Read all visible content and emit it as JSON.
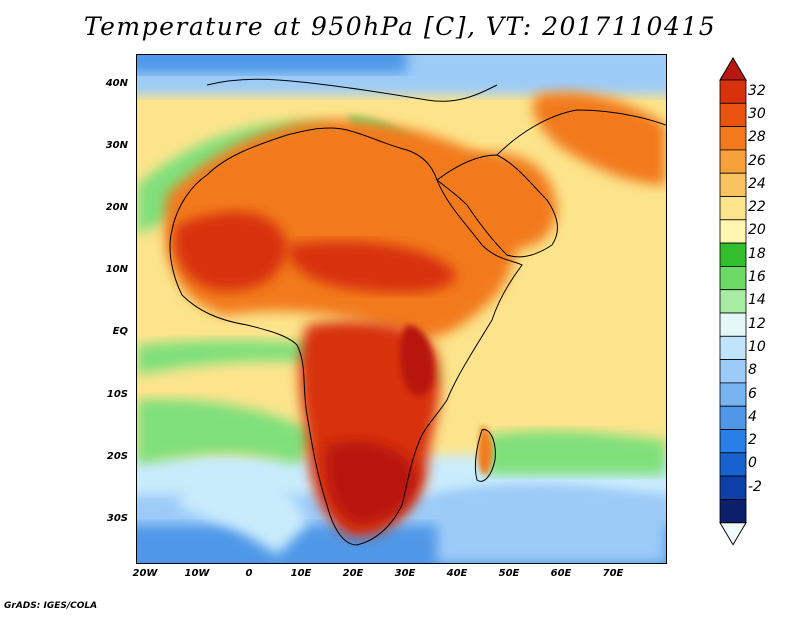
{
  "title": "Temperature at 950hPa [C], VT: 2017110415",
  "credit": "GrADS: IGES/COLA",
  "map": {
    "lat_labels": [
      "40N",
      "30N",
      "20N",
      "10N",
      "EQ",
      "10S",
      "20S",
      "30S"
    ],
    "lon_labels": [
      "20W",
      "10W",
      "0",
      "10E",
      "20E",
      "30E",
      "40E",
      "50E",
      "60E",
      "70E"
    ],
    "colors": {
      "ocean_cold": "#4f98e8",
      "ocean_cool": "#9ccbf8",
      "ocean_mild": "#c9ecfc",
      "sea_warm": "#fce48c",
      "green": "#7fe07a",
      "hot": "#f27a1c",
      "very_hot": "#d8320c",
      "extreme": "#b81810",
      "land_outline": "#000000"
    }
  },
  "colorbar": {
    "labels": [
      "32",
      "30",
      "28",
      "26",
      "24",
      "22",
      "20",
      "18",
      "16",
      "14",
      "12",
      "10",
      "8",
      "6",
      "4",
      "2",
      "0",
      "-2"
    ],
    "colors": [
      "#f1fbfe",
      "#0b1f6b",
      "#0e3fa8",
      "#1862d0",
      "#2a7ee8",
      "#4f98e8",
      "#79b4f2",
      "#9ccbf8",
      "#c0e4fb",
      "#e4f8f8",
      "#a8eba3",
      "#6bd964",
      "#32be2e",
      "#fdf5b0",
      "#fce48c",
      "#f9c361",
      "#f6a13a",
      "#f27a1c",
      "#e8540f",
      "#d8320c",
      "#b81810"
    ]
  }
}
